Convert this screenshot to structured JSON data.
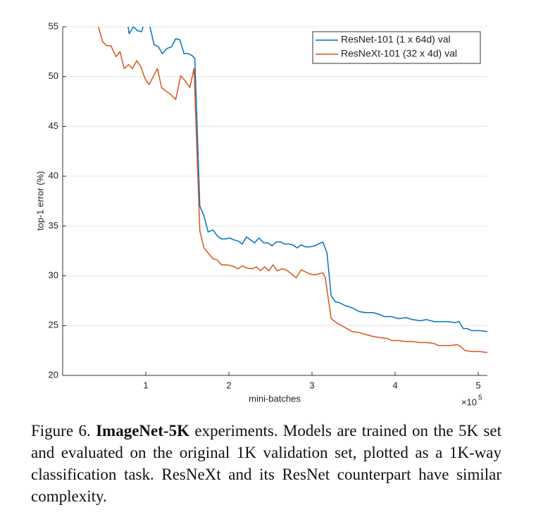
{
  "chart_data": {
    "type": "line",
    "xlabel": "mini-batches",
    "ylabel": "top-1 error (%)",
    "x_scale_label": {
      "base": "×10",
      "exponent": "5"
    },
    "xlim": [
      0,
      5.11
    ],
    "xticks": [
      1,
      2,
      3,
      4,
      5
    ],
    "ylim": [
      20,
      55
    ],
    "yticks": [
      20,
      25,
      30,
      35,
      40,
      45,
      50,
      55
    ],
    "grid": "y",
    "legend": "upper right",
    "series": [
      {
        "name": "ResNet-101 (1 x 64d) val",
        "color": "#0072bd",
        "x": [
          0.75,
          0.8,
          0.85,
          0.9,
          0.95,
          1.0,
          1.05,
          1.1,
          1.15,
          1.2,
          1.25,
          1.31,
          1.36,
          1.41,
          1.46,
          1.51,
          1.56,
          1.59,
          1.65,
          1.7,
          1.75,
          1.81,
          1.86,
          1.91,
          1.96,
          2.01,
          2.06,
          2.11,
          2.16,
          2.21,
          2.26,
          2.31,
          2.36,
          2.42,
          2.47,
          2.52,
          2.57,
          2.62,
          2.67,
          2.72,
          2.77,
          2.82,
          2.87,
          2.92,
          2.97,
          3.03,
          3.08,
          3.13,
          3.18,
          3.23,
          3.28,
          3.33,
          3.4,
          3.48,
          3.57,
          3.65,
          3.74,
          3.82,
          3.87,
          3.96,
          4.04,
          4.13,
          4.21,
          4.3,
          4.38,
          4.47,
          4.55,
          4.64,
          4.72,
          4.77,
          4.82,
          4.87,
          4.92,
          5.01,
          5.11
        ],
        "values": [
          57,
          54.3,
          55,
          54.6,
          54.5,
          56,
          55,
          53.2,
          53,
          52.3,
          52.8,
          53,
          53.8,
          53.7,
          52.3,
          52.3,
          52.1,
          51.8,
          37,
          36,
          34.4,
          34.6,
          34,
          33.7,
          33.7,
          33.8,
          33.6,
          33.5,
          33.2,
          33.9,
          33.6,
          33.3,
          33.8,
          33.3,
          33.3,
          33,
          33.4,
          33.4,
          33.2,
          33.2,
          33.1,
          32.8,
          33.1,
          32.9,
          32.9,
          33,
          33.2,
          33.4,
          32.3,
          28,
          27.4,
          27.3,
          27,
          26.8,
          26.4,
          26.3,
          26.3,
          26.1,
          25.9,
          25.9,
          25.7,
          25.8,
          25.6,
          25.5,
          25.6,
          25.4,
          25.4,
          25.4,
          25.3,
          25.4,
          24.7,
          24.7,
          24.5,
          24.5,
          24.4
        ]
      },
      {
        "name": "ResNeXt-101 (32 x 4d) val",
        "color": "#d95319",
        "x": [
          0.43,
          0.48,
          0.53,
          0.58,
          0.64,
          0.69,
          0.74,
          0.79,
          0.84,
          0.89,
          0.94,
          0.99,
          1.04,
          1.09,
          1.14,
          1.19,
          1.25,
          1.3,
          1.36,
          1.42,
          1.47,
          1.53,
          1.58,
          1.65,
          1.7,
          1.75,
          1.81,
          1.86,
          1.91,
          1.97,
          2.04,
          2.11,
          2.16,
          2.21,
          2.28,
          2.33,
          2.38,
          2.43,
          2.48,
          2.53,
          2.58,
          2.64,
          2.69,
          2.75,
          2.81,
          2.87,
          2.92,
          2.97,
          3.03,
          3.08,
          3.13,
          3.16,
          3.23,
          3.31,
          3.4,
          3.48,
          3.57,
          3.65,
          3.74,
          3.82,
          3.91,
          3.96,
          4.04,
          4.13,
          4.21,
          4.3,
          4.38,
          4.47,
          4.52,
          4.58,
          4.67,
          4.74,
          4.79,
          4.84,
          4.92,
          5.01,
          5.11
        ],
        "values": [
          55,
          53.5,
          53.1,
          53.1,
          52,
          52.5,
          50.8,
          51.2,
          50.8,
          51.6,
          51,
          49.8,
          49.2,
          50,
          50.8,
          48.9,
          48.5,
          48.2,
          47.7,
          50.1,
          49.6,
          48.9,
          50.8,
          34.5,
          32.8,
          32.3,
          31.7,
          31.6,
          31.1,
          31.1,
          31.0,
          30.7,
          31.0,
          30.8,
          30.7,
          30.9,
          30.5,
          30.9,
          30.5,
          31.1,
          30.5,
          30.7,
          30.6,
          30.2,
          29.8,
          30.6,
          30.4,
          30.2,
          30.1,
          30.2,
          30.3,
          29.8,
          25.7,
          25.2,
          24.8,
          24.4,
          24.3,
          24.1,
          23.9,
          23.8,
          23.7,
          23.5,
          23.5,
          23.4,
          23.4,
          23.3,
          23.3,
          23.2,
          23.0,
          23.0,
          23.0,
          23.1,
          22.9,
          22.5,
          22.4,
          22.4,
          22.3
        ]
      }
    ]
  },
  "caption": {
    "label": "Figure 6.",
    "bold": "ImageNet-5K",
    "text": "experiments. Models are trained on the 5K set and evaluated on the original 1K validation set, plotted as a 1K-way classification task. ResNeXt and its ResNet counterpart have similar complexity."
  }
}
